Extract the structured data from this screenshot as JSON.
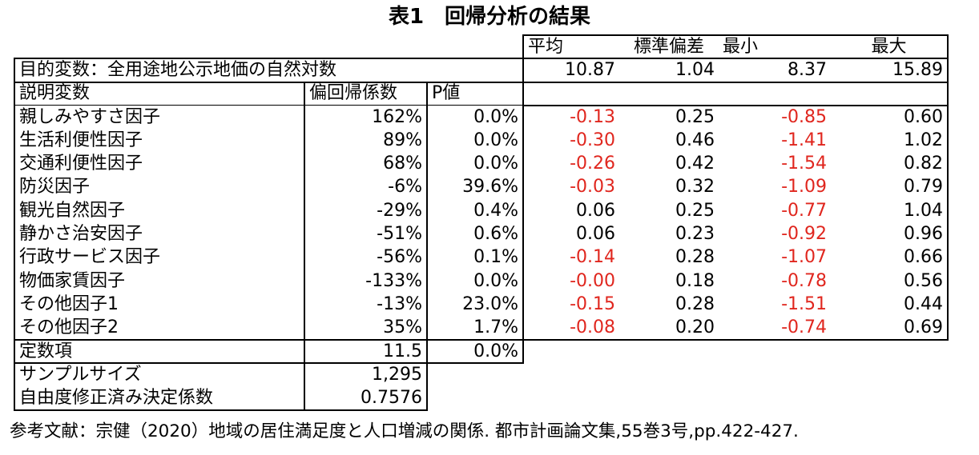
{
  "title": "表1　回帰分析の結果",
  "stat_headers": {
    "mean": "平均",
    "std": "標準偏差",
    "min": "最小",
    "max": "最大"
  },
  "target": {
    "label": "目的変数：全用途地公示地価の自然対数",
    "mean": "10.87",
    "std": "1.04",
    "min": "8.37",
    "max": "15.89"
  },
  "columns": {
    "variable": "説明変数",
    "coef": "偏回帰係数",
    "p": "P値"
  },
  "rows": [
    {
      "name": "親しみやすさ因子",
      "coef": "162%",
      "p": "0.0%",
      "mean": "-0.13",
      "std": "0.25",
      "min": "-0.85",
      "max": "0.60"
    },
    {
      "name": "生活利便性因子",
      "coef": "89%",
      "p": "0.0%",
      "mean": "-0.30",
      "std": "0.46",
      "min": "-1.41",
      "max": "1.02"
    },
    {
      "name": "交通利便性因子",
      "coef": "68%",
      "p": "0.0%",
      "mean": "-0.26",
      "std": "0.42",
      "min": "-1.54",
      "max": "0.82"
    },
    {
      "name": "防災因子",
      "coef": "-6%",
      "p": "39.6%",
      "mean": "-0.03",
      "std": "0.32",
      "min": "-1.09",
      "max": "0.79"
    },
    {
      "name": "観光自然因子",
      "coef": "-29%",
      "p": "0.4%",
      "mean": "0.06",
      "std": "0.25",
      "min": "-0.77",
      "max": "1.04"
    },
    {
      "name": "静かさ治安因子",
      "coef": "-51%",
      "p": "0.6%",
      "mean": "0.06",
      "std": "0.23",
      "min": "-0.92",
      "max": "0.96"
    },
    {
      "name": "行政サービス因子",
      "coef": "-56%",
      "p": "0.1%",
      "mean": "-0.14",
      "std": "0.28",
      "min": "-1.07",
      "max": "0.66"
    },
    {
      "name": "物価家賃因子",
      "coef": "-133%",
      "p": "0.0%",
      "mean": "-0.00",
      "std": "0.18",
      "min": "-0.78",
      "max": "0.56"
    },
    {
      "name": "その他因子1",
      "coef": "-13%",
      "p": "23.0%",
      "mean": "-0.15",
      "std": "0.28",
      "min": "-1.51",
      "max": "0.44"
    },
    {
      "name": "その他因子2",
      "coef": "35%",
      "p": "1.7%",
      "mean": "-0.08",
      "std": "0.20",
      "min": "-0.74",
      "max": "0.69"
    }
  ],
  "constant": {
    "label": "定数項",
    "coef": "11.5",
    "p": "0.0%"
  },
  "sample_size": {
    "label": "サンプルサイズ",
    "value": "1,295"
  },
  "adj_r2": {
    "label": "自由度修正済み決定係数",
    "value": "0.7576"
  },
  "reference": "参考文献：宗健（2020）地域の居住満足度と人口増減の関係. 都市計画論文集,55巻3号,pp.422-427.",
  "colors": {
    "negative": "#e0261e",
    "text": "#000000"
  }
}
